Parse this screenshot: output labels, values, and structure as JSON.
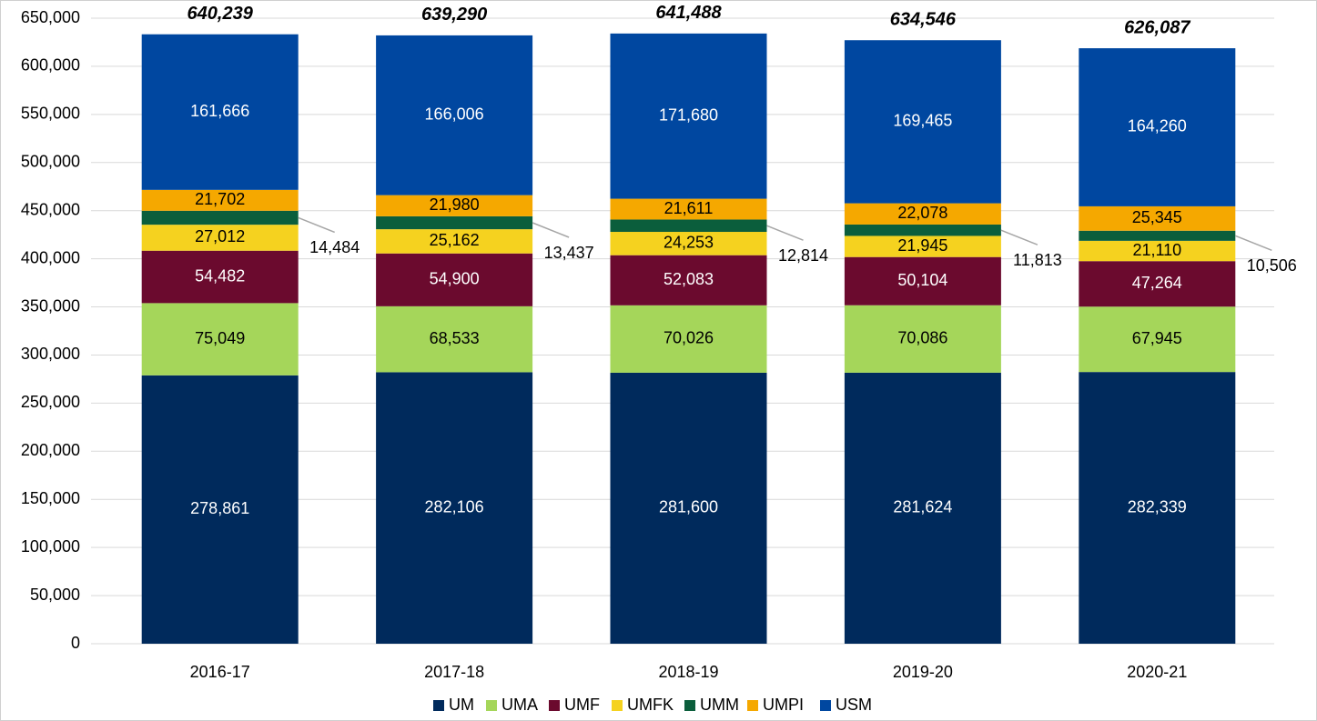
{
  "chart_data": {
    "type": "stacked_bar",
    "categories": [
      "2016-17",
      "2017-18",
      "2018-19",
      "2019-20",
      "2020-21"
    ],
    "series": [
      {
        "name": "UM",
        "color": "#002a5c",
        "label_color": "#ffffff",
        "values": [
          278861,
          282106,
          281600,
          281624,
          282339
        ],
        "value_labels": [
          "278,861",
          "282,106",
          "281,600",
          "281,624",
          "282,339"
        ]
      },
      {
        "name": "UMA",
        "color": "#a5d65a",
        "label_color": "#000000",
        "values": [
          75049,
          68533,
          70026,
          70086,
          67945
        ],
        "value_labels": [
          "75,049",
          "68,533",
          "70,026",
          "70,086",
          "67,945"
        ]
      },
      {
        "name": "UMF",
        "color": "#6b0a2e",
        "label_color": "#ffffff",
        "values": [
          54482,
          54900,
          52083,
          50104,
          47264
        ],
        "value_labels": [
          "54,482",
          "54,900",
          "52,083",
          "50,104",
          "47,264"
        ]
      },
      {
        "name": "UMFK",
        "color": "#f5d21f",
        "label_color": "#000000",
        "values": [
          27012,
          25162,
          24253,
          21945,
          21110
        ],
        "value_labels": [
          "27,012",
          "25,162",
          "24,253",
          "21,945",
          "21,110"
        ]
      },
      {
        "name": "UMM",
        "color": "#0b5e3c",
        "label_color": "#000000",
        "label_outside": true,
        "values": [
          14484,
          13437,
          12814,
          11813,
          10506
        ],
        "value_labels": [
          "14,484",
          "13,437",
          "12,814",
          "11,813",
          "10,506"
        ]
      },
      {
        "name": "UMPI",
        "color": "#f5a800",
        "label_color": "#000000",
        "values": [
          21702,
          21980,
          21611,
          22078,
          25345
        ],
        "value_labels": [
          "21,702",
          "21,980",
          "21,611",
          "22,078",
          "25,345"
        ]
      },
      {
        "name": "USM",
        "color": "#0047a0",
        "label_color": "#ffffff",
        "values": [
          161666,
          166006,
          171680,
          169465,
          164260
        ],
        "value_labels": [
          "161,666",
          "166,006",
          "171,680",
          "169,465",
          "164,260"
        ]
      }
    ],
    "totals": {
      "values": [
        640239,
        639290,
        641488,
        634546,
        626087
      ],
      "value_labels": [
        "640,239",
        "639,290",
        "641,488",
        "634,546",
        "626,087"
      ]
    },
    "ylim": [
      0,
      650000
    ],
    "yticks": [
      0,
      {
        "value": 50000,
        "label": "50,000"
      },
      {
        "value": 100000,
        "label": "100,000"
      },
      {
        "value": 150000,
        "label": "150,000"
      },
      {
        "value": 200000,
        "label": "200,000"
      },
      {
        "value": 250000,
        "label": "250,000"
      },
      {
        "value": 300000,
        "label": "300,000"
      },
      {
        "value": 350000,
        "label": "350,000"
      },
      {
        "value": 400000,
        "label": "400,000"
      },
      {
        "value": 450000,
        "label": "450,000"
      },
      {
        "value": 500000,
        "label": "500,000"
      },
      {
        "value": 550000,
        "label": "550,000"
      },
      {
        "value": 600000,
        "label": "600,000"
      },
      {
        "value": 650000,
        "label": "650,000"
      }
    ],
    "grid": true,
    "legend": "bottom"
  }
}
